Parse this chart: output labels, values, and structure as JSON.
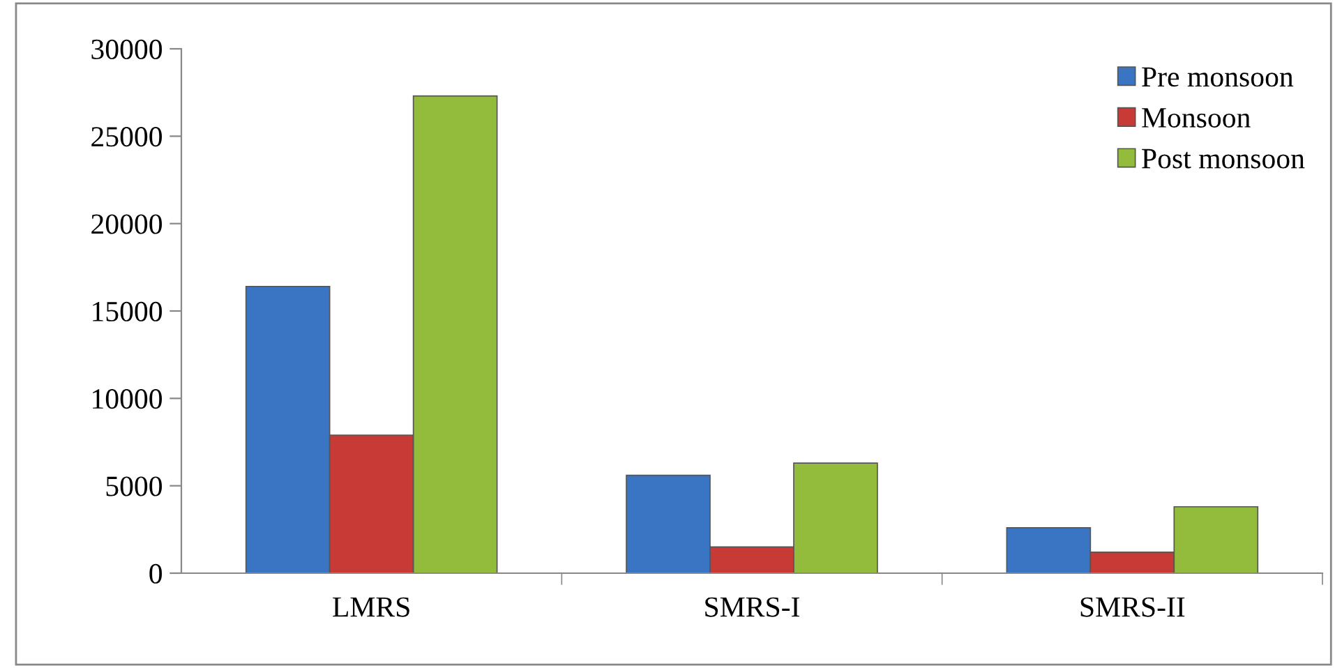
{
  "chart_data": {
    "type": "bar",
    "categories": [
      "LMRS",
      "SMRS-I",
      "SMRS-II"
    ],
    "series": [
      {
        "name": "Pre monsoon",
        "color": "#3a75c4",
        "values": [
          16400,
          5600,
          2600
        ]
      },
      {
        "name": "Monsoon",
        "color": "#c83a36",
        "values": [
          7900,
          1500,
          1200
        ]
      },
      {
        "name": "Post monsoon",
        "color": "#93bc3c",
        "values": [
          27300,
          6300,
          3800
        ]
      }
    ],
    "ylim": [
      0,
      30000
    ],
    "yticks": [
      0,
      5000,
      10000,
      15000,
      20000,
      25000,
      30000
    ],
    "grid": false,
    "legend": "top right"
  }
}
